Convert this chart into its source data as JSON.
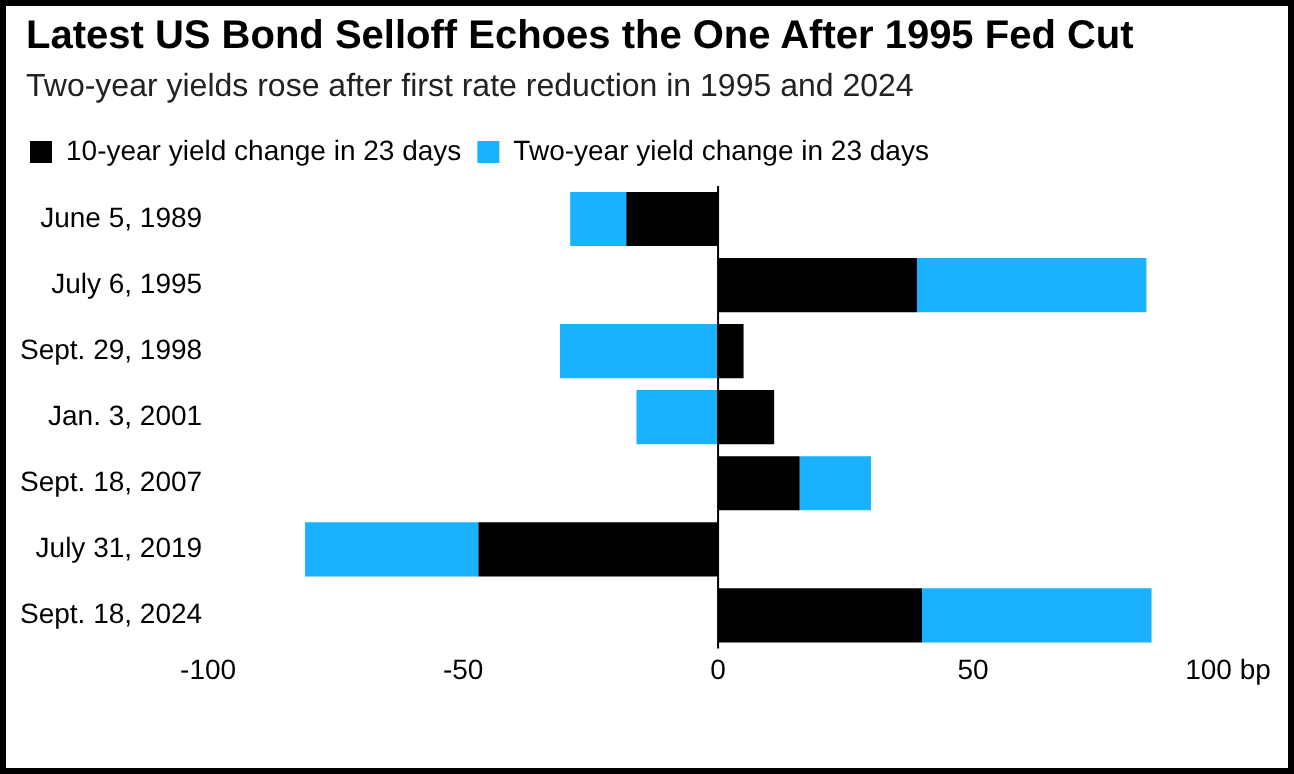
{
  "chart_data": {
    "type": "bar",
    "orientation": "horizontal",
    "stacked": true,
    "title": "Latest US Bond Selloff Echoes the One After 1995 Fed Cut",
    "subtitle": "Two-year yields rose after first rate reduction in 1995 and 2024",
    "categories": [
      "June 5, 1989",
      "July 6, 1995",
      "Sept. 29, 1998",
      "Jan. 3, 2001",
      "Sept. 18, 2007",
      "July 31, 2019",
      "Sept. 18, 2024"
    ],
    "series": [
      {
        "name": "10-year yield change in 23 days",
        "color": "#000000",
        "values": [
          -18,
          39,
          5,
          11,
          16,
          -47,
          40
        ]
      },
      {
        "name": "Two-year yield change in 23 days",
        "color": "#1ab2ff",
        "values": [
          -11,
          45,
          -31,
          -16,
          14,
          -34,
          45
        ]
      }
    ],
    "xlim": [
      -100,
      100
    ],
    "xticks": [
      -100,
      -50,
      0,
      50,
      {
        "value": 100,
        "label": "100 bp"
      }
    ],
    "ref_lines": [
      {
        "axis": "x",
        "value": 0,
        "color": "#000000"
      }
    ],
    "grid": false,
    "legend": "top left"
  }
}
